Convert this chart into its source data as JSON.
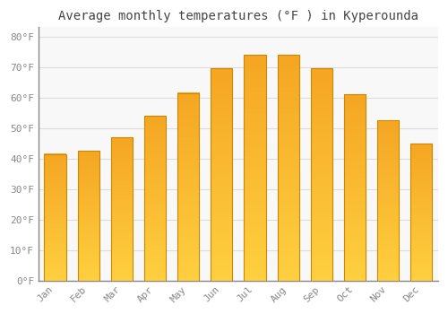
{
  "title": "Average monthly temperatures (°F ) in Kyperounda",
  "months": [
    "Jan",
    "Feb",
    "Mar",
    "Apr",
    "May",
    "Jun",
    "Jul",
    "Aug",
    "Sep",
    "Oct",
    "Nov",
    "Dec"
  ],
  "values": [
    41.5,
    42.5,
    47.0,
    54.0,
    61.5,
    69.5,
    74.0,
    74.0,
    69.5,
    61.0,
    52.5,
    45.0
  ],
  "bar_color_top": "#F5A623",
  "bar_color_bottom": "#FFD040",
  "bar_edge_color": "#CC8800",
  "background_color": "#FFFFFF",
  "plot_bg_color": "#F8F8F8",
  "grid_color": "#DDDDDD",
  "tick_label_color": "#888888",
  "title_color": "#444444",
  "ylim": [
    0,
    83
  ],
  "yticks": [
    0,
    10,
    20,
    30,
    40,
    50,
    60,
    70,
    80
  ],
  "ytick_labels": [
    "0°F",
    "10°F",
    "20°F",
    "30°F",
    "40°F",
    "50°F",
    "60°F",
    "70°F",
    "80°F"
  ],
  "title_fontsize": 10,
  "tick_fontsize": 8,
  "font_family": "monospace"
}
